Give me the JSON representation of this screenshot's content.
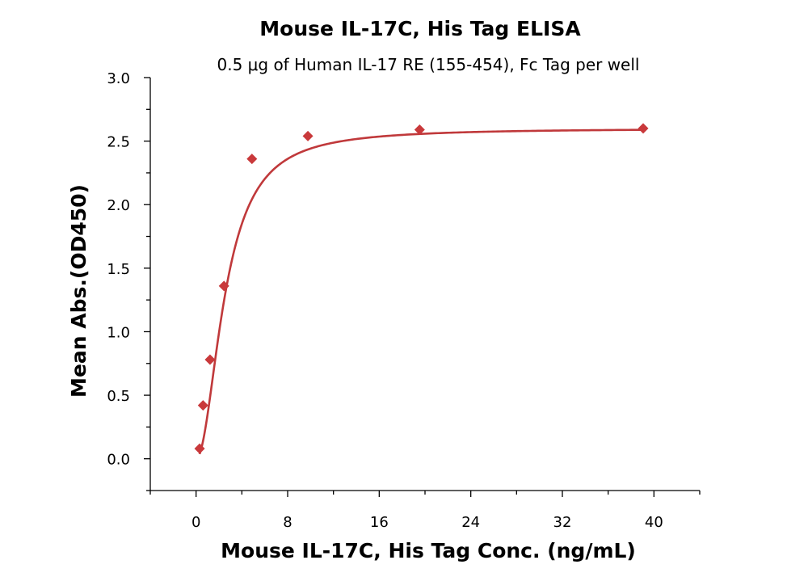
{
  "chart_data": {
    "type": "scatter",
    "title": "Mouse IL-17C, His Tag ELISA",
    "subtitle": "0.5 μg of Human IL-17 RE (155-454), Fc Tag per well",
    "xlabel": "Mouse IL-17C, His Tag Conc. (ng/mL)",
    "ylabel": "Mean Abs.(OD450)",
    "xlim": [
      -4,
      44
    ],
    "ylim": [
      -0.25,
      3.0
    ],
    "xticks": [
      0,
      8,
      16,
      24,
      32,
      40
    ],
    "yticks": [
      0.0,
      0.5,
      1.0,
      1.5,
      2.0,
      2.5,
      3.0
    ],
    "xtick_labels": [
      "0",
      "8",
      "16",
      "24",
      "32",
      "40"
    ],
    "ytick_labels": [
      "0.0",
      "0.5",
      "1.0",
      "1.5",
      "2.0",
      "2.5",
      "3.0"
    ],
    "grid": false,
    "colors": {
      "points": "#c9393b",
      "curve": "#c0393b"
    },
    "series": [
      {
        "x": [
          0.31,
          0.61,
          1.22,
          2.44,
          4.88,
          9.77,
          19.53,
          39.06
        ],
        "y": [
          0.08,
          0.42,
          0.78,
          1.36,
          2.36,
          2.54,
          2.59,
          2.6
        ]
      }
    ],
    "fit": {
      "model": "4PL",
      "bottom": 0.0,
      "top": 2.6,
      "ec50": 2.55,
      "hill": 2.0
    }
  }
}
